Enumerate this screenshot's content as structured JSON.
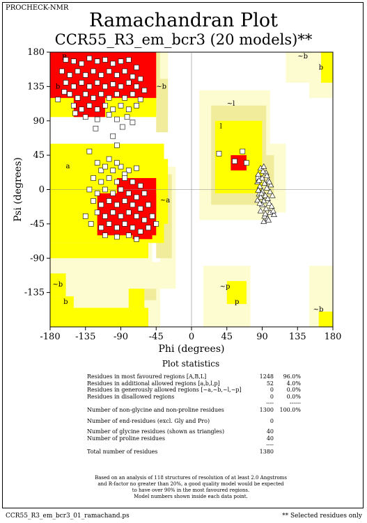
{
  "header": {
    "program": "PROCHECK-NMR"
  },
  "title": "Ramachandran Plot",
  "subtitle": "CCR55_R3_em_bcr3 (20 models)**",
  "colors": {
    "most_favoured": "#ff0000",
    "additional_allowed": "#ffff00",
    "generously_allowed": "#f0ec9c",
    "generous_pale": "#fcfcd0",
    "disallowed": "#ffffff"
  },
  "chart_data": {
    "type": "scatter",
    "xlabel": "Phi (degrees)",
    "ylabel": "Psi (degrees)",
    "xlim": [
      -180,
      180
    ],
    "ylim": [
      -180,
      180
    ],
    "xticks": [
      "-180",
      "-135",
      "-90",
      "-45",
      "0",
      "45",
      "90",
      "135",
      "180"
    ],
    "yticks": [
      "180",
      "135",
      "90",
      "45",
      "0",
      "-45",
      "-90",
      "-135"
    ],
    "region_labels": [
      {
        "text": "B",
        "phi": -165,
        "psi": 170
      },
      {
        "text": "b",
        "phi": -173,
        "psi": 132
      },
      {
        "text": "~b",
        "phi": -45,
        "psi": 132
      },
      {
        "text": "~b",
        "phi": 135,
        "psi": 172
      },
      {
        "text": "b",
        "phi": 162,
        "psi": 157
      },
      {
        "text": "~l",
        "phi": 45,
        "psi": 110
      },
      {
        "text": "l",
        "phi": 36,
        "psi": 80
      },
      {
        "text": "a",
        "phi": -160,
        "psi": 28
      },
      {
        "text": "~a",
        "phi": -40,
        "psi": -17
      },
      {
        "text": "~b",
        "phi": -177,
        "psi": -127
      },
      {
        "text": "b",
        "phi": -163,
        "psi": -150
      },
      {
        "text": "~p",
        "phi": 36,
        "psi": -130
      },
      {
        "text": "p",
        "phi": 55,
        "psi": -150
      },
      {
        "text": "~b",
        "phi": 155,
        "psi": -160
      }
    ],
    "series": [
      {
        "marker": "square",
        "points": [
          [
            -160,
            170
          ],
          [
            -150,
            168
          ],
          [
            -140,
            165
          ],
          [
            -130,
            172
          ],
          [
            -120,
            168
          ],
          [
            -110,
            170
          ],
          [
            -100,
            165
          ],
          [
            -90,
            168
          ],
          [
            -80,
            170
          ],
          [
            -70,
            160
          ],
          [
            -165,
            155
          ],
          [
            -155,
            150
          ],
          [
            -145,
            155
          ],
          [
            -135,
            150
          ],
          [
            -125,
            155
          ],
          [
            -115,
            150
          ],
          [
            -105,
            155
          ],
          [
            -95,
            150
          ],
          [
            -85,
            155
          ],
          [
            -75,
            148
          ],
          [
            -65,
            145
          ],
          [
            -160,
            140
          ],
          [
            -150,
            135
          ],
          [
            -140,
            140
          ],
          [
            -130,
            135
          ],
          [
            -120,
            140
          ],
          [
            -110,
            135
          ],
          [
            -100,
            138
          ],
          [
            -90,
            135
          ],
          [
            -80,
            140
          ],
          [
            -70,
            135
          ],
          [
            -60,
            130
          ],
          [
            -155,
            125
          ],
          [
            -145,
            120
          ],
          [
            -135,
            125
          ],
          [
            -125,
            120
          ],
          [
            -115,
            125
          ],
          [
            -105,
            120
          ],
          [
            -95,
            125
          ],
          [
            -85,
            120
          ],
          [
            -75,
            125
          ],
          [
            -65,
            118
          ],
          [
            -150,
            110
          ],
          [
            -140,
            105
          ],
          [
            -130,
            110
          ],
          [
            -120,
            105
          ],
          [
            -110,
            110
          ],
          [
            -100,
            105
          ],
          [
            -90,
            110
          ],
          [
            -80,
            105
          ],
          [
            -70,
            110
          ],
          [
            -162,
            128
          ],
          [
            -148,
            100
          ],
          [
            -135,
            95
          ],
          [
            -120,
            92
          ],
          [
            -105,
            98
          ],
          [
            -95,
            92
          ],
          [
            -82,
            95
          ],
          [
            -170,
            118
          ],
          [
            -122,
            80
          ],
          [
            -88,
            82
          ],
          [
            -100,
            70
          ],
          [
            -75,
            88
          ],
          [
            -130,
            50
          ],
          [
            -95,
            58
          ],
          [
            -115,
            25
          ],
          [
            -70,
            28
          ],
          [
            -120,
            35
          ],
          [
            -110,
            30
          ],
          [
            -100,
            25
          ],
          [
            -90,
            30
          ],
          [
            -80,
            25
          ],
          [
            -105,
            40
          ],
          [
            -95,
            35
          ],
          [
            -85,
            20
          ],
          [
            -125,
            15
          ],
          [
            -115,
            10
          ],
          [
            -105,
            15
          ],
          [
            -95,
            10
          ],
          [
            -85,
            15
          ],
          [
            -75,
            10
          ],
          [
            -65,
            5
          ],
          [
            -130,
            0
          ],
          [
            -120,
            -5
          ],
          [
            -110,
            0
          ],
          [
            -100,
            -5
          ],
          [
            -90,
            0
          ],
          [
            -80,
            -5
          ],
          [
            -70,
            -10
          ],
          [
            -60,
            -5
          ],
          [
            -125,
            -15
          ],
          [
            -115,
            -20
          ],
          [
            -105,
            -15
          ],
          [
            -95,
            -20
          ],
          [
            -85,
            -15
          ],
          [
            -75,
            -20
          ],
          [
            -65,
            -25
          ],
          [
            -55,
            -20
          ],
          [
            -120,
            -30
          ],
          [
            -110,
            -35
          ],
          [
            -100,
            -30
          ],
          [
            -90,
            -35
          ],
          [
            -80,
            -30
          ],
          [
            -70,
            -35
          ],
          [
            -60,
            -40
          ],
          [
            -50,
            -35
          ],
          [
            -135,
            -35
          ],
          [
            -128,
            -45
          ],
          [
            -115,
            -50
          ],
          [
            -105,
            -45
          ],
          [
            -95,
            -50
          ],
          [
            -85,
            -45
          ],
          [
            -75,
            -50
          ],
          [
            -65,
            -55
          ],
          [
            -55,
            -50
          ],
          [
            -45,
            -45
          ],
          [
            -80,
            -60
          ],
          [
            -70,
            -65
          ],
          [
            -110,
            -60
          ],
          [
            -95,
            -62
          ],
          [
            35,
            47
          ],
          [
            55,
            37
          ],
          [
            65,
            50
          ],
          [
            85,
            15
          ],
          [
            70,
            35
          ]
        ]
      },
      {
        "marker": "triangle",
        "points": [
          [
            88,
            28
          ],
          [
            92,
            30
          ],
          [
            85,
            20
          ],
          [
            95,
            22
          ],
          [
            90,
            15
          ],
          [
            98,
            12
          ],
          [
            84,
            10
          ],
          [
            93,
            8
          ],
          [
            87,
            4
          ],
          [
            96,
            2
          ],
          [
            90,
            -2
          ],
          [
            100,
            -3
          ],
          [
            86,
            -6
          ],
          [
            94,
            -8
          ],
          [
            88,
            -10
          ],
          [
            97,
            -12
          ],
          [
            92,
            -15
          ],
          [
            84,
            -14
          ],
          [
            99,
            -18
          ],
          [
            90,
            -20
          ],
          [
            95,
            -25
          ],
          [
            102,
            -22
          ],
          [
            88,
            -28
          ],
          [
            100,
            -30
          ],
          [
            93,
            -35
          ],
          [
            105,
            -33
          ],
          [
            97,
            -38
          ],
          [
            89,
            -5
          ],
          [
            101,
            6
          ],
          [
            96,
            18
          ],
          [
            91,
            24
          ],
          [
            87,
            -18
          ],
          [
            103,
            -8
          ],
          [
            85,
            -1
          ],
          [
            99,
            10
          ],
          [
            94,
            -32
          ],
          [
            98,
            -40
          ],
          [
            92,
            -42
          ],
          [
            104,
            -28
          ],
          [
            86,
            12
          ]
        ]
      }
    ]
  },
  "stats": {
    "title": "Plot statistics",
    "rows": [
      {
        "label": "Residues in most favoured regions   [A,B,L]",
        "count": "1248",
        "pct": "96.0%"
      },
      {
        "label": "Residues in additional allowed regions   [a,b,l,p]",
        "count": "52",
        "pct": "4.0%"
      },
      {
        "label": "Residues in generously allowed regions   [~a,~b,~l,~p]",
        "count": "0",
        "pct": "0.0%"
      },
      {
        "label": "Residues in disallowed regions",
        "count": "0",
        "pct": "0.0%"
      }
    ],
    "dash1": "----",
    "dash2": "------",
    "total_nongly": {
      "label": "Number of non-glycine and non-proline residues",
      "count": "1300",
      "pct": "100.0%"
    },
    "end_residues": {
      "label": "Number of end-residues (excl. Gly and Pro)",
      "count": "0"
    },
    "glycine": {
      "label": "Number of glycine residues (shown as triangles)",
      "count": "40"
    },
    "proline": {
      "label": "Number of proline residues",
      "count": "40"
    },
    "dash3": "----",
    "total": {
      "label": "Total number of residues",
      "count": "1380"
    }
  },
  "note_lines": [
    "Based on an analysis of 118 structures of resolution of at least 2.0 Angstroms",
    "and R-factor no greater than 20%, a good quality model would be expected",
    "to have over 90% in the most favoured regions.",
    "Model numbers shown inside each data point."
  ],
  "footer": {
    "file": "CCR55_R3_em_bcr3_01_ramachand.ps",
    "note": "** Selected residues only"
  }
}
